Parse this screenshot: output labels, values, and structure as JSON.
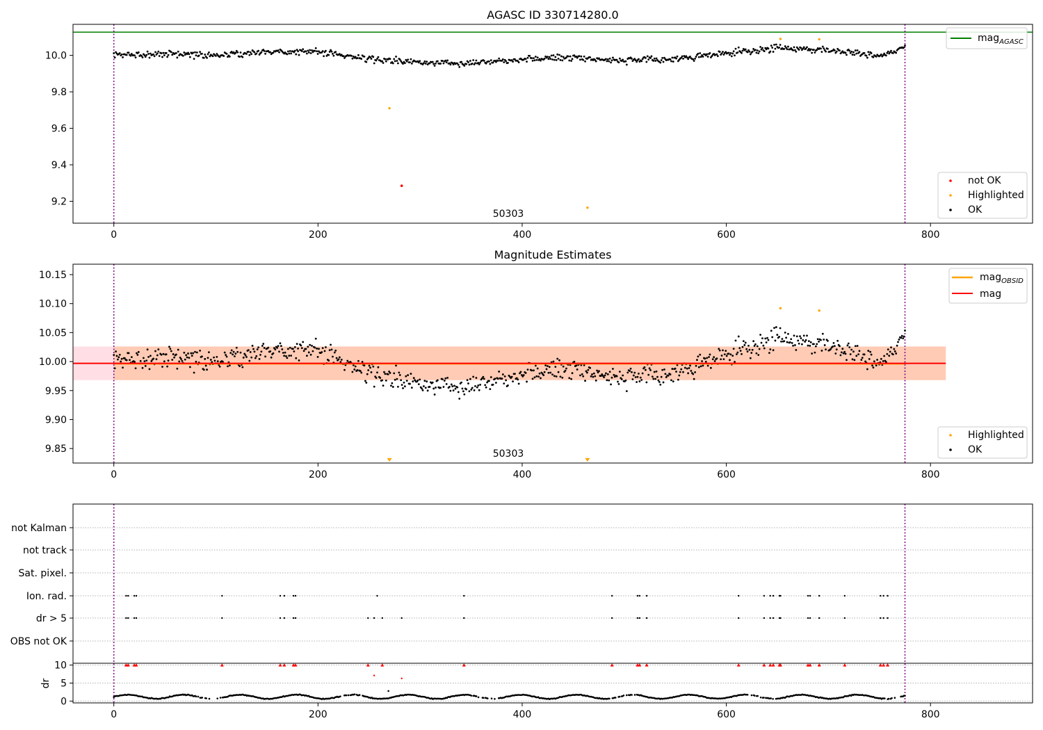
{
  "chart_data": [
    {
      "type": "scatter",
      "title": "AGASC ID 330714280.0",
      "xlim": [
        -40,
        900
      ],
      "ylim": [
        9.08,
        10.17
      ],
      "xticks": [
        0,
        200,
        400,
        600,
        800
      ],
      "yticks": [
        9.2,
        9.4,
        9.6,
        9.8,
        10.0
      ],
      "ytick_labels": [
        "9.2",
        "9.4",
        "9.6",
        "9.8",
        "10.0"
      ],
      "obsid_label": "50303",
      "obsid_label_x": 385,
      "vlines": [
        0,
        775
      ],
      "hline": {
        "value": 10.127,
        "color": "#008000",
        "label": "mag",
        "label_sub": "AGASC"
      },
      "ok_points": {
        "x_range": [
          0,
          775
        ],
        "count": 800,
        "anchor_x": [
          0,
          50,
          100,
          150,
          200,
          250,
          300,
          350,
          400,
          450,
          500,
          550,
          600,
          650,
          700,
          750,
          775
        ],
        "anchor_y": [
          10.0,
          10.01,
          10.0,
          10.02,
          10.02,
          9.98,
          9.96,
          9.96,
          9.98,
          9.99,
          9.97,
          9.98,
          10.01,
          10.04,
          10.03,
          10.0,
          10.04
        ],
        "spread": 0.04,
        "color": "#000000"
      },
      "highlighted_points": [
        {
          "x": 270,
          "y": 9.71
        },
        {
          "x": 464,
          "y": 9.165
        },
        {
          "x": 653,
          "y": 10.09
        },
        {
          "x": 691,
          "y": 10.088
        }
      ],
      "not_ok_points": [
        {
          "x": 282,
          "y": 9.285
        }
      ],
      "legend": [
        {
          "label": "not OK",
          "color": "#ff0000",
          "kind": "point"
        },
        {
          "label": "Highlighted",
          "color": "#ffa500",
          "kind": "point"
        },
        {
          "label": "OK",
          "color": "#000000",
          "kind": "point"
        }
      ]
    },
    {
      "type": "scatter",
      "title": "Magnitude Estimates",
      "xlim": [
        -40,
        900
      ],
      "ylim": [
        9.825,
        10.168
      ],
      "xticks": [
        0,
        200,
        400,
        600,
        800
      ],
      "yticks": [
        9.85,
        9.9,
        9.95,
        10.0,
        10.05,
        10.1,
        10.15
      ],
      "ytick_labels": [
        "9.85",
        "9.90",
        "9.95",
        "10.00",
        "10.05",
        "10.10",
        "10.15"
      ],
      "obsid_label": "50303",
      "obsid_label_x": 385,
      "vlines": [
        0,
        775
      ],
      "mag_line": {
        "value": 9.997,
        "color": "#ff0000",
        "label": "mag",
        "x_range": [
          -40,
          815
        ]
      },
      "mag_obsid_line": {
        "value": 9.996,
        "color": "#ffa500",
        "label": "mag",
        "label_sub": "OBSID",
        "x_range": [
          0,
          775
        ]
      },
      "band_pink": {
        "low": 9.968,
        "high": 10.026,
        "x_range": [
          -40,
          815
        ]
      },
      "band_orange": {
        "low": 9.968,
        "high": 10.026,
        "x_range": [
          0,
          815
        ]
      },
      "ok_points": {
        "x_range": [
          0,
          775
        ],
        "count": 800,
        "anchor_x": [
          0,
          50,
          100,
          150,
          200,
          250,
          300,
          350,
          400,
          450,
          500,
          550,
          600,
          650,
          700,
          750,
          775
        ],
        "anchor_y": [
          10.0,
          10.01,
          10.0,
          10.02,
          10.02,
          9.98,
          9.96,
          9.96,
          9.98,
          9.99,
          9.97,
          9.98,
          10.01,
          10.04,
          10.03,
          10.0,
          10.04
        ],
        "spread": 0.04,
        "color": "#000000"
      },
      "highlighted_points": [
        {
          "x": 653,
          "y": 10.092
        },
        {
          "x": 691,
          "y": 10.088
        }
      ],
      "highlighted_below_markers": [
        270,
        464
      ],
      "legend_lines": [
        {
          "label": "mag",
          "label_sub": "OBSID",
          "color": "#ffa500"
        },
        {
          "label": "mag",
          "color": "#ff0000"
        }
      ],
      "legend_points": [
        {
          "label": "Highlighted",
          "color": "#ffa500"
        },
        {
          "label": "OK",
          "color": "#000000"
        }
      ]
    },
    {
      "type": "scatter",
      "xlim": [
        -40,
        900
      ],
      "xticks": [
        0,
        200,
        400,
        600,
        800
      ],
      "vlines": [
        0,
        775
      ],
      "flag_rows": [
        "not Kalman",
        "not track",
        "Sat. pixel.",
        "Ion. rad.",
        "dr > 5",
        "OBS not OK"
      ],
      "flag_events": {
        "Ion. rad.": [
          12,
          14,
          20,
          22,
          106,
          163,
          167,
          176,
          178,
          258,
          343,
          488,
          513,
          515,
          522,
          612,
          637,
          643,
          646,
          652,
          653,
          680,
          682,
          691,
          716,
          751,
          754,
          758
        ],
        "dr > 5": [
          12,
          14,
          20,
          22,
          106,
          163,
          167,
          176,
          178,
          249,
          255,
          263,
          282,
          343,
          488,
          513,
          515,
          522,
          612,
          637,
          643,
          646,
          652,
          653,
          680,
          682,
          691,
          716,
          751,
          754,
          758
        ]
      },
      "dr_ylabel": "dr",
      "dr_ylim": [
        -0.5,
        10.5
      ],
      "dr_yticks": [
        0,
        5,
        10
      ],
      "dr_red_markers_at_10": [
        12,
        14,
        20,
        22,
        106,
        163,
        167,
        176,
        178,
        249,
        263,
        343,
        488,
        513,
        515,
        522,
        612,
        637,
        643,
        646,
        652,
        653,
        680,
        682,
        691,
        716,
        751,
        754,
        758
      ],
      "dr_red_points": [
        {
          "x": 255,
          "y": 7.1
        },
        {
          "x": 282,
          "y": 6.3
        }
      ],
      "dr_black_outlier": {
        "x": 269,
        "y": 2.8
      },
      "dr_baseline": {
        "x_range": [
          0,
          775
        ],
        "mean": 1.2,
        "amplitude": 0.7,
        "period": 55
      }
    }
  ]
}
